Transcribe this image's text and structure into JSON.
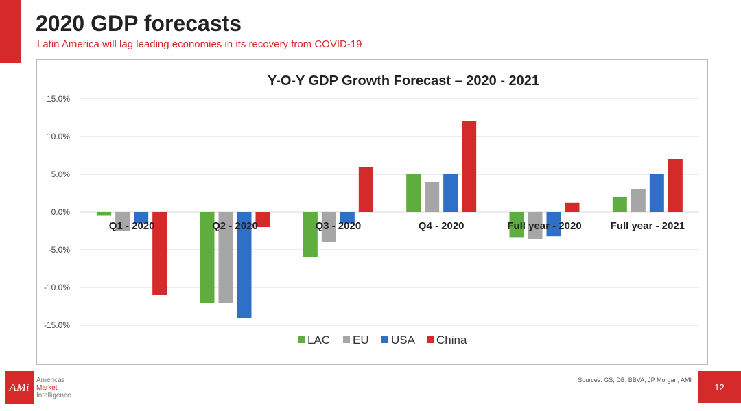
{
  "slide": {
    "title": "2020 GDP forecasts",
    "subtitle": "Latin America will lag leading economies in its recovery from COVID-19",
    "sources": "Sources: GS, DB, BBVA, JP Morgan, AMI",
    "page_number": "12",
    "logo": {
      "mark": "AMi",
      "line1": "Americas",
      "line2": "Market",
      "line3": "Intelligence"
    },
    "accent_color": "#d42a2a"
  },
  "chart_data": {
    "type": "bar",
    "title": "Y-O-Y GDP Growth Forecast – 2020 - 2021",
    "categories": [
      "Q1 - 2020",
      "Q2 - 2020",
      "Q3 - 2020",
      "Q4 - 2020",
      "Full year - 2020",
      "Full year - 2021"
    ],
    "series": [
      {
        "name": "LAC",
        "color": "#5fad3f",
        "values": [
          -0.5,
          -12,
          -6,
          5,
          -3.4,
          2
        ]
      },
      {
        "name": "EU",
        "color": "#a6a6a6",
        "values": [
          -2.5,
          -12,
          -4,
          4,
          -3.6,
          3
        ]
      },
      {
        "name": "USA",
        "color": "#2e6fc8",
        "values": [
          -1.5,
          -14,
          -1.5,
          5,
          -3.2,
          5
        ]
      },
      {
        "name": "China",
        "color": "#d42a2a",
        "values": [
          -11,
          -2,
          6,
          12,
          1.2,
          7
        ]
      }
    ],
    "ylim": [
      -15,
      15
    ],
    "yticks": [
      15,
      10,
      5,
      0,
      -5,
      -10,
      -15
    ],
    "ytick_labels": [
      "15.0%",
      "10.0%",
      "5.0%",
      "0.0%",
      "-5.0%",
      "-10.0%",
      "-15.0%"
    ],
    "grid": true,
    "legend_position": "bottom"
  }
}
